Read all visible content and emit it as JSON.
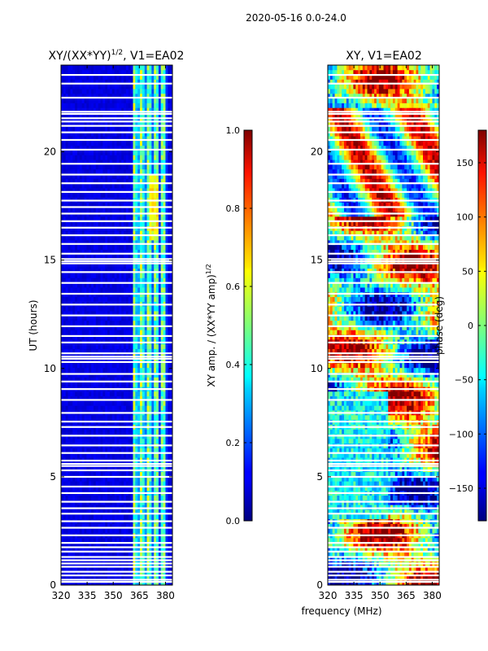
{
  "chart_data": {
    "suptitle": "2020-05-16 0.0-24.0",
    "type": "heatmap",
    "panels": [
      {
        "id": "amp",
        "title": "XY/(XX*YY)",
        "title_exponent": "1/2",
        "title_suffix": ", V1=EA02",
        "type": "heatmap",
        "xlim": [
          320,
          384
        ],
        "ylim": [
          0,
          24
        ],
        "xticks": [
          320,
          335,
          350,
          365,
          380
        ],
        "yticks": [
          0,
          5,
          10,
          15,
          20
        ],
        "ylabel": "UT (hours)",
        "xlabel": "",
        "colormap": "jet",
        "active_band_MHz": [
          361,
          381
        ],
        "colorbar": {
          "label": "XY amp. / (XX*YY amp)",
          "label_exponent": "1/2",
          "range": [
            0.0,
            1.0
          ],
          "ticks": [
            0.0,
            0.2,
            0.4,
            0.6,
            0.8,
            1.0
          ],
          "tick_labels": [
            "0.0",
            "0.2",
            "0.4",
            "0.6",
            "0.8",
            "1.0"
          ]
        }
      },
      {
        "id": "phase",
        "title": "XY, V1=EA02",
        "type": "heatmap",
        "xlim": [
          320,
          384
        ],
        "ylim": [
          0,
          24
        ],
        "xticks": [
          320,
          335,
          350,
          365,
          380
        ],
        "yticks": [
          0,
          5,
          10,
          15,
          20
        ],
        "ylabel": "",
        "xlabel": "frequency (MHz)",
        "colormap": "jet",
        "colorbar": {
          "label": "phase (deg)",
          "range": [
            -180,
            180
          ],
          "ticks": [
            -150,
            -100,
            -50,
            0,
            50,
            100,
            150
          ],
          "tick_labels": [
            "−150",
            "−100",
            "−50",
            "0",
            "50",
            "100",
            "150"
          ]
        }
      }
    ],
    "flagged_hours": [
      0.15,
      0.25,
      0.45,
      0.62,
      0.85,
      1.0,
      1.15,
      1.3,
      1.55,
      1.75,
      1.95,
      2.3,
      2.65,
      2.95,
      3.3,
      3.55,
      3.85,
      4.25,
      4.55,
      5.0,
      5.3,
      5.5,
      5.6,
      5.75,
      6.1,
      6.45,
      6.9,
      7.3,
      7.55,
      7.95,
      8.55,
      9.05,
      9.4,
      9.75,
      10.3,
      10.45,
      10.55,
      10.7,
      11.2,
      11.5,
      11.95,
      12.45,
      12.95,
      13.45,
      13.95,
      14.45,
      14.85,
      14.95,
      15.05,
      15.3,
      15.75,
      16.15,
      16.5,
      16.8,
      17.15,
      17.45,
      17.75,
      18.15,
      18.55,
      18.95,
      19.45,
      20.1,
      20.55,
      20.9,
      21.2,
      21.4,
      21.55,
      21.75,
      21.85,
      22.5,
      23.15,
      23.55
    ]
  }
}
